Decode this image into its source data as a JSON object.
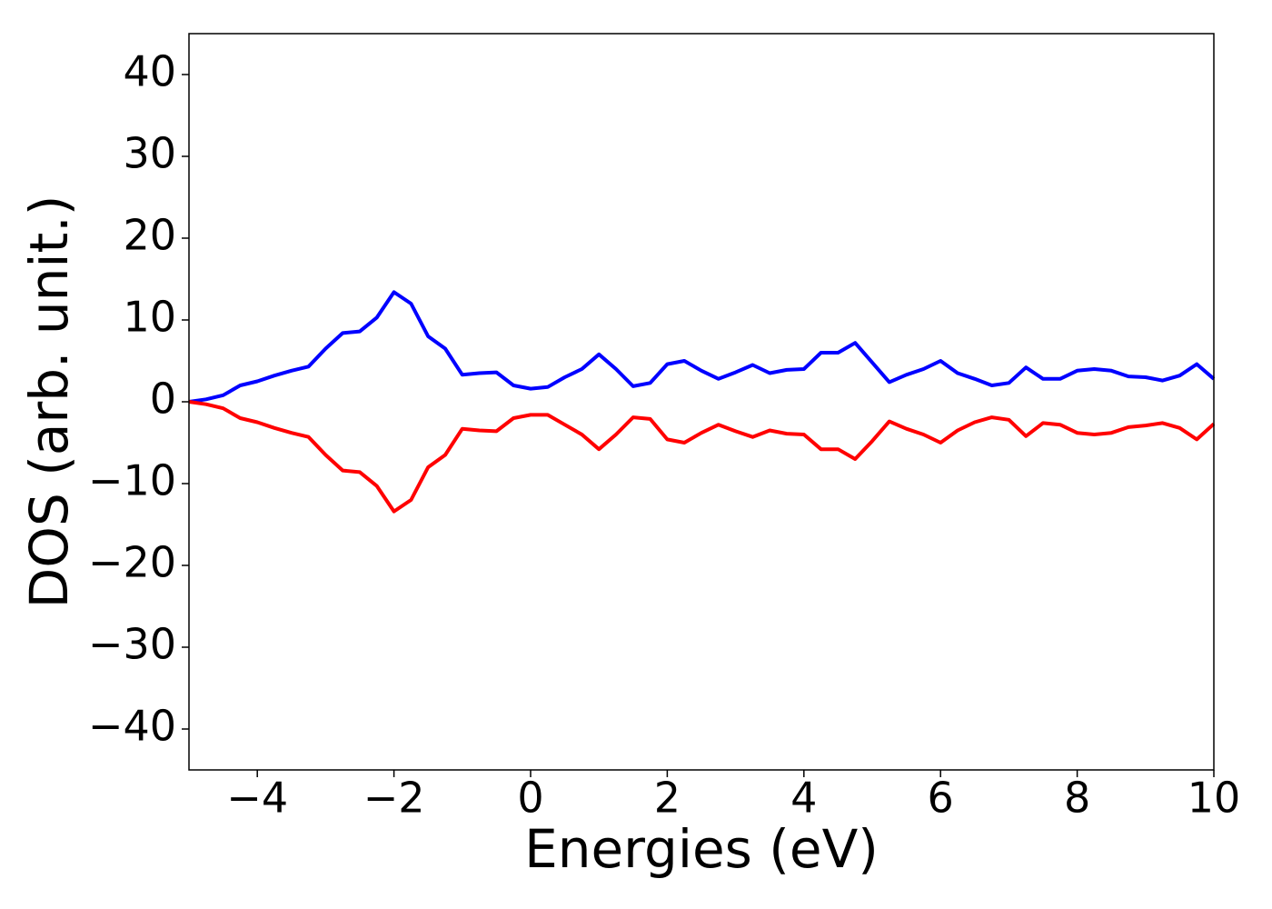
{
  "chart_data": {
    "type": "line",
    "xlabel": "Energies (eV)",
    "ylabel": "DOS (arb. unit.)",
    "x": [
      -5,
      -4.75,
      -4.5,
      -4.25,
      -4,
      -3.75,
      -3.5,
      -3.25,
      -3,
      -2.75,
      -2.5,
      -2.25,
      -2,
      -1.75,
      -1.5,
      -1.25,
      -1,
      -0.75,
      -0.5,
      -0.25,
      0,
      0.25,
      0.5,
      0.75,
      1,
      1.25,
      1.5,
      1.75,
      2,
      2.25,
      2.5,
      2.75,
      3,
      3.25,
      3.5,
      3.75,
      4,
      4.25,
      4.5,
      4.75,
      5,
      5.25,
      5.5,
      5.75,
      6,
      6.25,
      6.5,
      6.75,
      7,
      7.25,
      7.5,
      7.75,
      8,
      8.25,
      8.5,
      8.75,
      9,
      9.25,
      9.5,
      9.75,
      10
    ],
    "series": [
      {
        "color": "#0000ff",
        "values": [
          0,
          0.3,
          0.8,
          2.0,
          2.5,
          3.2,
          3.8,
          4.3,
          6.5,
          8.4,
          8.6,
          10.3,
          13.4,
          12.0,
          8.0,
          6.5,
          3.3,
          3.5,
          3.6,
          2.0,
          1.6,
          1.8,
          3.0,
          4.0,
          5.8,
          4.0,
          1.9,
          2.3,
          4.6,
          5.0,
          3.8,
          2.8,
          3.6,
          4.5,
          3.5,
          3.9,
          4.0,
          6.0,
          6.0,
          7.2,
          4.8,
          2.4,
          3.3,
          4.0,
          5.0,
          3.5,
          2.8,
          2.0,
          2.3,
          4.2,
          2.8,
          2.8,
          3.8,
          4.0,
          3.8,
          3.1,
          3.0,
          2.6,
          3.2,
          4.6,
          2.8
        ]
      },
      {
        "color": "#ff0000",
        "values": [
          0,
          -0.3,
          -0.8,
          -2.0,
          -2.5,
          -3.2,
          -3.8,
          -4.3,
          -6.5,
          -8.4,
          -8.6,
          -10.3,
          -13.4,
          -12.0,
          -8.0,
          -6.5,
          -3.3,
          -3.5,
          -3.6,
          -2.0,
          -1.6,
          -1.6,
          -2.8,
          -4.0,
          -5.8,
          -4.0,
          -1.9,
          -2.1,
          -4.6,
          -5.0,
          -3.8,
          -2.8,
          -3.6,
          -4.3,
          -3.5,
          -3.9,
          -4.0,
          -5.8,
          -5.8,
          -7.0,
          -4.8,
          -2.4,
          -3.3,
          -4.0,
          -5.0,
          -3.5,
          -2.5,
          -1.9,
          -2.2,
          -4.2,
          -2.6,
          -2.8,
          -3.8,
          -4.0,
          -3.8,
          -3.1,
          -2.9,
          -2.6,
          -3.2,
          -4.6,
          -2.7
        ]
      }
    ],
    "xlim": [
      -5,
      10
    ],
    "xticks": [
      {
        "value": -4,
        "label": "−4"
      },
      {
        "value": -2,
        "label": "−2"
      },
      0,
      2,
      4,
      6,
      8,
      10
    ],
    "ylim": [
      -45,
      45
    ],
    "yticks": [
      {
        "value": -40,
        "label": "−40"
      },
      {
        "value": -30,
        "label": "−30"
      },
      {
        "value": -20,
        "label": "−20"
      },
      {
        "value": -10,
        "label": "−10"
      },
      0,
      10,
      20,
      30,
      40
    ]
  }
}
